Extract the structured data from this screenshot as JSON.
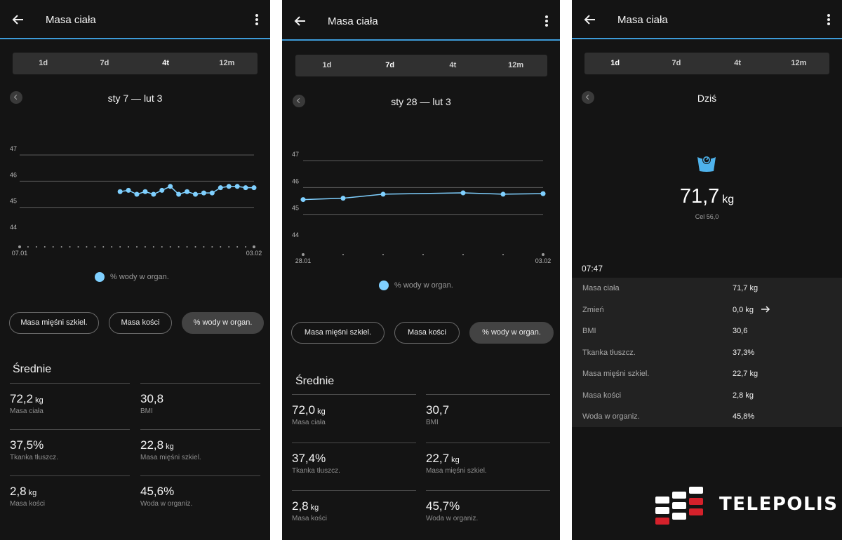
{
  "colors": {
    "background": "#141414",
    "accent": "#3d9bd8",
    "series": "#7fd0ff",
    "tabs_bg": "#303030"
  },
  "screens": [
    {
      "title": "Masa ciała",
      "tabs": [
        "1d",
        "7d",
        "4t",
        "12m"
      ],
      "active_tab": "4t",
      "range": "sty 7 — lut 3",
      "legend": "% wody w organ.",
      "pills": [
        "Masa mięśni szkiel.",
        "Masa kości",
        "% wody w organ."
      ],
      "active_pill": "% wody w organ.",
      "averages_title": "Średnie",
      "stats": [
        {
          "value": "72,2",
          "unit": "kg",
          "label": "Masa ciała"
        },
        {
          "value": "30,8",
          "unit": "",
          "label": "BMI"
        },
        {
          "value": "37,5%",
          "unit": "",
          "label": "Tkanka tłuszcz."
        },
        {
          "value": "22,8",
          "unit": "kg",
          "label": "Masa mięśni szkiel."
        },
        {
          "value": "2,8",
          "unit": "kg",
          "label": "Masa kości"
        },
        {
          "value": "45,6%",
          "unit": "",
          "label": "Woda w organiz."
        }
      ]
    },
    {
      "title": "Masa ciała",
      "tabs": [
        "1d",
        "7d",
        "4t",
        "12m"
      ],
      "active_tab": "7d",
      "range": "sty 28 — lut 3",
      "legend": "% wody w organ.",
      "pills": [
        "Masa mięśni szkiel.",
        "Masa kości",
        "% wody w organ."
      ],
      "active_pill": "% wody w organ.",
      "averages_title": "Średnie",
      "stats": [
        {
          "value": "72,0",
          "unit": "kg",
          "label": "Masa ciała"
        },
        {
          "value": "30,7",
          "unit": "",
          "label": "BMI"
        },
        {
          "value": "37,4%",
          "unit": "",
          "label": "Tkanka tłuszcz."
        },
        {
          "value": "22,7",
          "unit": "kg",
          "label": "Masa mięśni szkiel."
        },
        {
          "value": "2,8",
          "unit": "kg",
          "label": "Masa kości"
        },
        {
          "value": "45,7%",
          "unit": "",
          "label": "Woda w organiz."
        }
      ]
    },
    {
      "title": "Masa ciała",
      "tabs": [
        "1d",
        "7d",
        "4t",
        "12m"
      ],
      "active_tab": "1d",
      "day_label": "Dziś",
      "weight_value": "71,7",
      "weight_unit": "kg",
      "goal": "Cel 56,0",
      "time": "07:47",
      "details": [
        {
          "label": "Masa ciała",
          "value": "71,7 kg"
        },
        {
          "label": "Zmień",
          "value": "0,0 kg",
          "arrow": true
        },
        {
          "label": "BMI",
          "value": "30,6"
        },
        {
          "label": "Tkanka tłuszcz.",
          "value": "37,3%"
        },
        {
          "label": "Masa mięśni szkiel.",
          "value": "22,7 kg"
        },
        {
          "label": "Masa kości",
          "value": "2,8 kg"
        },
        {
          "label": "Woda w organiz.",
          "value": "45,8%"
        }
      ]
    }
  ],
  "watermark": "TELEPOLIS",
  "chart_data": [
    {
      "type": "line",
      "series": [
        {
          "name": "% wody w organ.",
          "x": [
            12,
            13,
            14,
            15,
            16,
            17,
            18,
            19,
            20,
            21,
            22,
            23,
            24,
            25,
            26,
            27,
            28
          ],
          "values": [
            45.6,
            45.65,
            45.5,
            45.6,
            45.5,
            45.65,
            45.8,
            45.5,
            45.6,
            45.5,
            45.55,
            45.55,
            45.75,
            45.8,
            45.8,
            45.75,
            45.75
          ]
        }
      ],
      "x_tick_labels": [
        "07.01",
        "03.02"
      ],
      "xlim": [
        0,
        28
      ],
      "y_ticks": [
        44,
        45,
        46,
        47
      ],
      "ylim": [
        44,
        47
      ],
      "grid": true
    },
    {
      "type": "line",
      "series": [
        {
          "name": "% wody w organ.",
          "x": [
            0,
            1,
            2,
            4,
            5,
            6
          ],
          "values": [
            45.55,
            45.6,
            45.75,
            45.8,
            45.75,
            45.77
          ]
        }
      ],
      "x_tick_labels": [
        "28.01",
        "03.02"
      ],
      "xlim": [
        0,
        6
      ],
      "y_ticks": [
        44,
        45,
        46,
        47
      ],
      "ylim": [
        44,
        47
      ],
      "grid": true
    }
  ]
}
